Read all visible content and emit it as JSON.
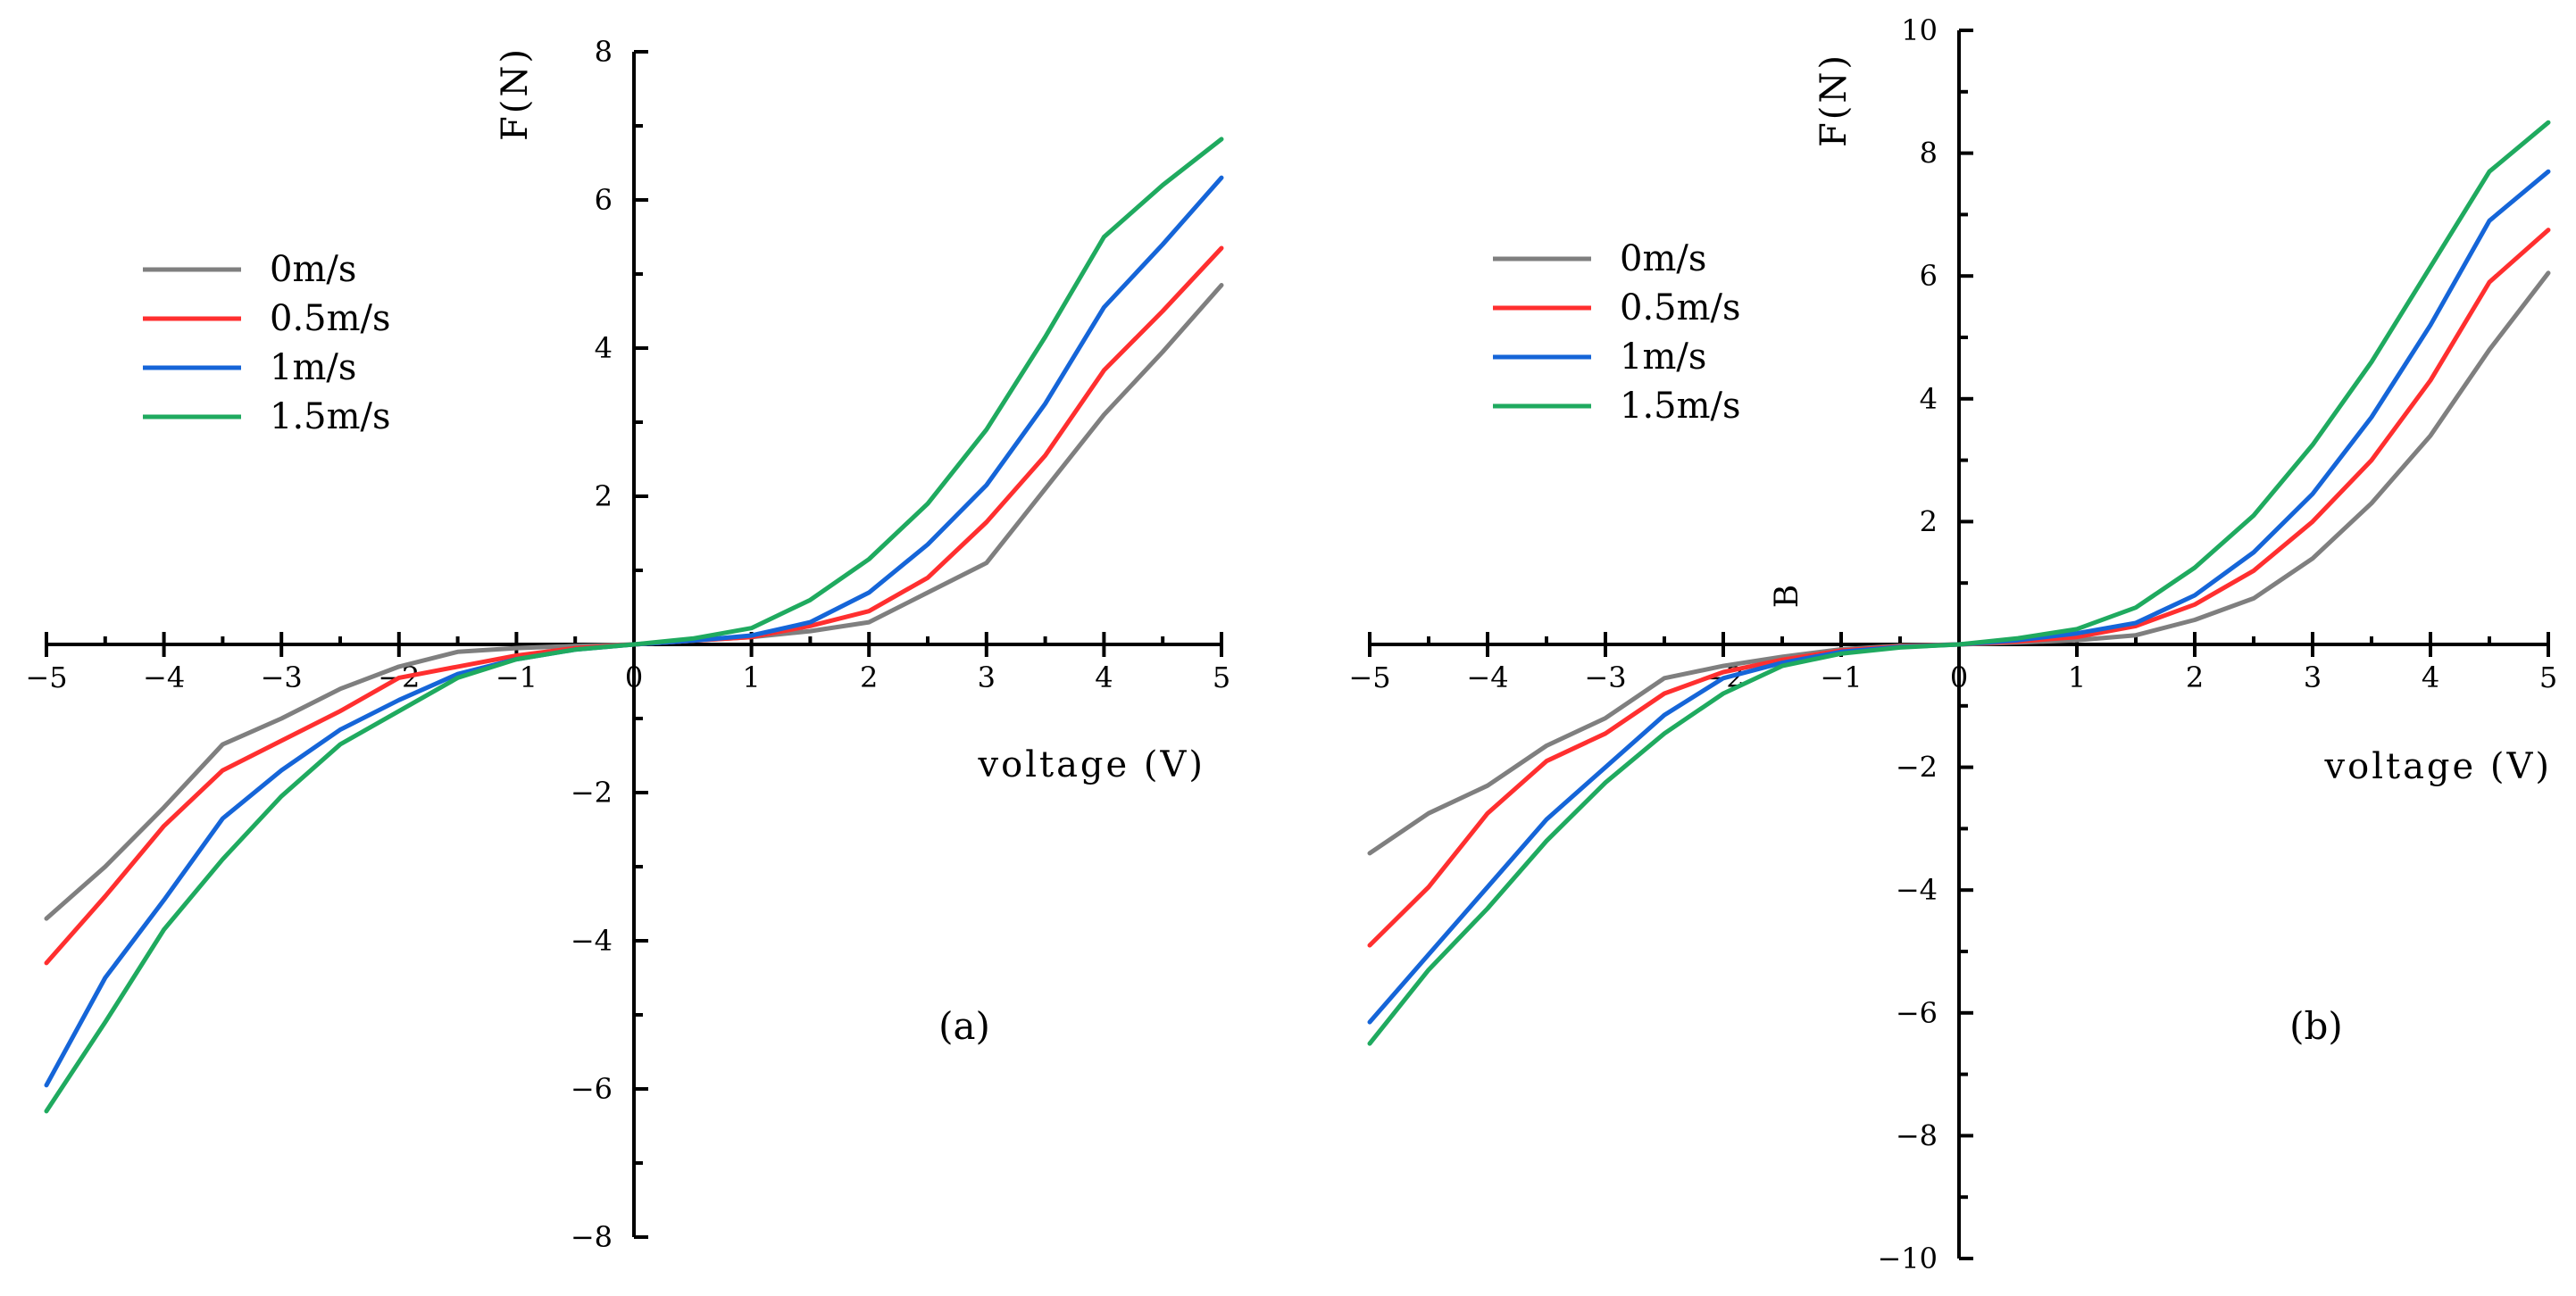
{
  "chart_data": [
    {
      "type": "line",
      "panel_label": "(a)",
      "xlabel": "voltage (V)",
      "ylabel": "F(N)",
      "xlim": [
        -5,
        5
      ],
      "ylim": [
        -8,
        8
      ],
      "x_ticks": [
        -5,
        -4,
        -3,
        -2,
        -1,
        0,
        1,
        2,
        3,
        4,
        5
      ],
      "y_ticks": [
        -8,
        -6,
        -4,
        -2,
        2,
        4,
        6,
        8
      ],
      "x_tick_labels": [
        "−5",
        "−4",
        "−3",
        "−2",
        "−1",
        "0",
        "1",
        "2",
        "3",
        "4",
        "5"
      ],
      "y_tick_labels": [
        "−8",
        "−6",
        "−4",
        "−2",
        "2",
        "4",
        "6",
        "8"
      ],
      "grid": false,
      "legend_position": "upper-left",
      "x": [
        -5,
        -4.5,
        -4,
        -3.5,
        -3,
        -2.5,
        -2,
        -1.5,
        -1,
        -0.5,
        0,
        0.5,
        1,
        1.5,
        2,
        2.5,
        3,
        3.5,
        4,
        4.5,
        5
      ],
      "series": [
        {
          "name": "0m/s",
          "color": "#7f7f7f",
          "values": [
            -3.7,
            -3.0,
            -2.2,
            -1.35,
            -1.0,
            -0.6,
            -0.3,
            -0.1,
            -0.05,
            -0.02,
            0.0,
            0.05,
            0.1,
            0.18,
            0.3,
            0.7,
            1.1,
            2.1,
            3.1,
            3.95,
            4.85
          ]
        },
        {
          "name": "0.5m/s",
          "color": "#ff2f2f",
          "values": [
            -4.3,
            -3.4,
            -2.45,
            -1.7,
            -1.3,
            -0.9,
            -0.45,
            -0.3,
            -0.15,
            -0.05,
            0.0,
            0.05,
            0.1,
            0.25,
            0.45,
            0.9,
            1.65,
            2.55,
            3.7,
            4.5,
            5.35
          ]
        },
        {
          "name": "1m/s",
          "color": "#1565d8",
          "values": [
            -5.95,
            -4.5,
            -3.45,
            -2.35,
            -1.7,
            -1.15,
            -0.75,
            -0.4,
            -0.2,
            -0.07,
            0.0,
            0.05,
            0.12,
            0.3,
            0.7,
            1.35,
            2.15,
            3.25,
            4.55,
            5.4,
            6.3
          ]
        },
        {
          "name": "1.5m/s",
          "color": "#1faa5f",
          "values": [
            -6.3,
            -5.1,
            -3.85,
            -2.9,
            -2.05,
            -1.35,
            -0.9,
            -0.45,
            -0.2,
            -0.07,
            0.0,
            0.08,
            0.22,
            0.6,
            1.15,
            1.9,
            2.9,
            4.15,
            5.5,
            6.2,
            6.82
          ]
        }
      ]
    },
    {
      "type": "line",
      "panel_label": "(b)",
      "xlabel": "voltage (V)",
      "ylabel": "F(N)",
      "stray_label": "B",
      "xlim": [
        -5,
        5
      ],
      "ylim": [
        -10,
        10
      ],
      "x_ticks": [
        -5,
        -4,
        -3,
        -2,
        -1,
        0,
        1,
        2,
        3,
        4,
        5
      ],
      "y_ticks": [
        -10,
        -8,
        -6,
        -4,
        -2,
        2,
        4,
        6,
        8,
        10
      ],
      "x_tick_labels": [
        "−5",
        "−4",
        "−3",
        "−2",
        "−1",
        "0",
        "1",
        "2",
        "3",
        "4",
        "5"
      ],
      "y_tick_labels": [
        "−10",
        "−8",
        "−6",
        "−4",
        "−2",
        "2",
        "4",
        "6",
        "8",
        "10"
      ],
      "grid": false,
      "legend_position": "upper-left",
      "x": [
        -5,
        -4.5,
        -4,
        -3.5,
        -3,
        -2.5,
        -2,
        -1.5,
        -1,
        -0.5,
        0,
        0.5,
        1,
        1.5,
        2,
        2.5,
        3,
        3.5,
        4,
        4.5,
        5
      ],
      "series": [
        {
          "name": "0m/s",
          "color": "#7f7f7f",
          "values": [
            -3.4,
            -2.75,
            -2.3,
            -1.65,
            -1.2,
            -0.55,
            -0.35,
            -0.2,
            -0.08,
            -0.02,
            0.0,
            0.03,
            0.07,
            0.15,
            0.4,
            0.75,
            1.4,
            2.3,
            3.4,
            4.8,
            6.05
          ]
        },
        {
          "name": "0.5m/s",
          "color": "#ff2f2f",
          "values": [
            -4.9,
            -3.95,
            -2.75,
            -1.9,
            -1.45,
            -0.8,
            -0.45,
            -0.25,
            -0.1,
            -0.03,
            0.0,
            0.05,
            0.12,
            0.3,
            0.65,
            1.2,
            2.0,
            3.0,
            4.3,
            5.9,
            6.75
          ]
        },
        {
          "name": "1m/s",
          "color": "#1565d8",
          "values": [
            -6.15,
            -5.05,
            -3.95,
            -2.85,
            -2.0,
            -1.15,
            -0.55,
            -0.3,
            -0.12,
            -0.04,
            0.0,
            0.07,
            0.18,
            0.35,
            0.8,
            1.5,
            2.45,
            3.7,
            5.2,
            6.9,
            7.7
          ]
        },
        {
          "name": "1.5m/s",
          "color": "#1faa5f",
          "values": [
            -6.5,
            -5.3,
            -4.3,
            -3.2,
            -2.25,
            -1.45,
            -0.8,
            -0.35,
            -0.15,
            -0.05,
            0.0,
            0.1,
            0.25,
            0.6,
            1.25,
            2.1,
            3.25,
            4.6,
            6.15,
            7.7,
            8.5
          ]
        }
      ]
    }
  ]
}
